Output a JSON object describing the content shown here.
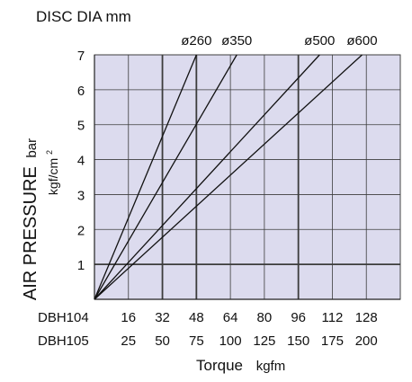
{
  "chart_data": {
    "type": "line",
    "title": "DISC DIA mm",
    "ylabel": "AIR PRESSURE",
    "ylabel_unit": "bar",
    "ylabel_unit2": "kgf/cm",
    "ylabel_unit2_sup": "2",
    "xlabel": "Torque",
    "xlabel_unit": "kgfm",
    "ylim": [
      0,
      7
    ],
    "yticks": [
      "1",
      "2",
      "3",
      "4",
      "5",
      "6",
      "7"
    ],
    "x_rows": [
      {
        "name": "DBH104",
        "ticks": [
          "16",
          "32",
          "48",
          "64",
          "80",
          "96",
          "112",
          "128"
        ]
      },
      {
        "name": "DBH105",
        "ticks": [
          "25",
          "50",
          "75",
          "100",
          "125",
          "150",
          "175",
          "200"
        ]
      }
    ],
    "xlim_dbh104": [
      0,
      144
    ],
    "series": [
      {
        "name": "ø260",
        "x": [
          0,
          48
        ],
        "y": [
          0,
          7
        ]
      },
      {
        "name": "ø350",
        "x": [
          0,
          67
        ],
        "y": [
          0,
          7
        ]
      },
      {
        "name": "ø500",
        "x": [
          0,
          106
        ],
        "y": [
          0,
          7
        ]
      },
      {
        "name": "ø600",
        "x": [
          0,
          126
        ],
        "y": [
          0,
          7
        ]
      }
    ],
    "bold_gridlines_x": [
      32,
      48,
      96
    ],
    "bold_gridline_y": 1,
    "grid": true,
    "colors": {
      "plot_bg": "#dcdbee",
      "grid": "#3c3c3c",
      "line": "#111111"
    }
  }
}
